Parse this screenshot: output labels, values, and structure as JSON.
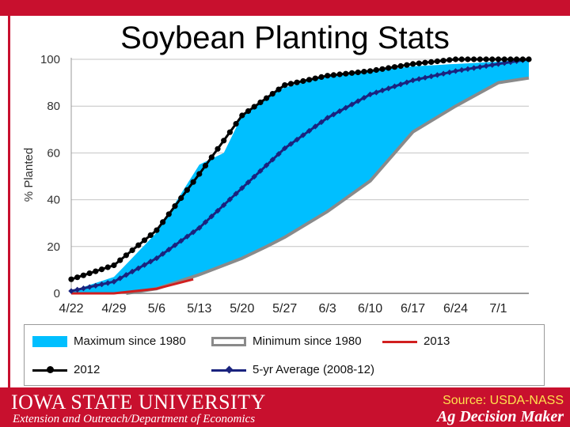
{
  "title": "Soybean Planting Stats",
  "footer": {
    "university": "IOWA STATE UNIVERSITY",
    "department": "Extension and Outreach/Department of Economics",
    "source": "Source: USDA-NASS",
    "brand": "Ag Decision Maker"
  },
  "colors": {
    "brand_red": "#c8102e",
    "max_fill": "#00bfff",
    "min_line": "#8a8a8a",
    "line_2013": "#d11f1f",
    "line_2012": "#000000",
    "line_avg": "#1a237e"
  },
  "chart_data": {
    "type": "area",
    "title": "Soybean Planting Stats",
    "xlabel": "",
    "ylabel": "% Planted",
    "ylim": [
      0,
      100
    ],
    "yticks": [
      0,
      20,
      40,
      60,
      80,
      100
    ],
    "xlim": [
      "4/22",
      "7/6"
    ],
    "xtick_labels": [
      "4/22",
      "4/29",
      "5/6",
      "5/13",
      "5/20",
      "5/27",
      "6/3",
      "6/10",
      "6/17",
      "6/24",
      "7/1"
    ],
    "grid": "horizontal",
    "legend": [
      {
        "name": "Maximum since 1980",
        "style": "fill"
      },
      {
        "name": "Minimum since 1980",
        "style": "outline"
      },
      {
        "name": "2013",
        "style": "line"
      },
      {
        "name": "2012",
        "style": "line-dot"
      },
      {
        "name": "5-yr Average (2008-12)",
        "style": "line-diamond"
      }
    ],
    "series": [
      {
        "name": "Maximum since 1980",
        "kind": "area",
        "points": [
          [
            "4/22",
            1
          ],
          [
            "4/29",
            7
          ],
          [
            "5/6",
            26
          ],
          [
            "5/13",
            55
          ],
          [
            "5/17",
            60
          ],
          [
            "5/20",
            76
          ],
          [
            "5/24",
            84
          ],
          [
            "5/27",
            88
          ],
          [
            "6/3",
            93
          ],
          [
            "6/10",
            95
          ],
          [
            "6/17",
            97
          ],
          [
            "6/24",
            98
          ],
          [
            "7/1",
            99
          ],
          [
            "7/6",
            100
          ]
        ]
      },
      {
        "name": "Minimum since 1980",
        "kind": "line",
        "points": [
          [
            "5/1",
            0
          ],
          [
            "5/6",
            2
          ],
          [
            "5/13",
            8
          ],
          [
            "5/20",
            15
          ],
          [
            "5/24",
            20
          ],
          [
            "5/27",
            24
          ],
          [
            "6/3",
            35
          ],
          [
            "6/10",
            48
          ],
          [
            "6/17",
            69
          ],
          [
            "6/24",
            80
          ],
          [
            "7/1",
            90
          ],
          [
            "7/6",
            92
          ]
        ]
      },
      {
        "name": "2013",
        "kind": "line",
        "points": [
          [
            "4/22",
            0
          ],
          [
            "4/29",
            0
          ],
          [
            "5/6",
            2
          ],
          [
            "5/12",
            6
          ]
        ]
      },
      {
        "name": "2012",
        "kind": "line-dot",
        "points": [
          [
            "4/22",
            6
          ],
          [
            "4/29",
            12
          ],
          [
            "5/6",
            27
          ],
          [
            "5/13",
            51
          ],
          [
            "5/20",
            76
          ],
          [
            "5/27",
            89
          ],
          [
            "6/3",
            93
          ],
          [
            "6/10",
            95
          ],
          [
            "6/17",
            98
          ],
          [
            "6/24",
            100
          ],
          [
            "7/1",
            100
          ],
          [
            "7/6",
            100
          ]
        ]
      },
      {
        "name": "5-yr Average (2008-12)",
        "kind": "line-diamond",
        "points": [
          [
            "4/22",
            1
          ],
          [
            "4/29",
            5
          ],
          [
            "5/6",
            15
          ],
          [
            "5/13",
            28
          ],
          [
            "5/20",
            45
          ],
          [
            "5/27",
            62
          ],
          [
            "6/3",
            75
          ],
          [
            "6/10",
            85
          ],
          [
            "6/17",
            91
          ],
          [
            "6/24",
            95
          ],
          [
            "7/1",
            98
          ],
          [
            "7/6",
            100
          ]
        ]
      }
    ]
  }
}
